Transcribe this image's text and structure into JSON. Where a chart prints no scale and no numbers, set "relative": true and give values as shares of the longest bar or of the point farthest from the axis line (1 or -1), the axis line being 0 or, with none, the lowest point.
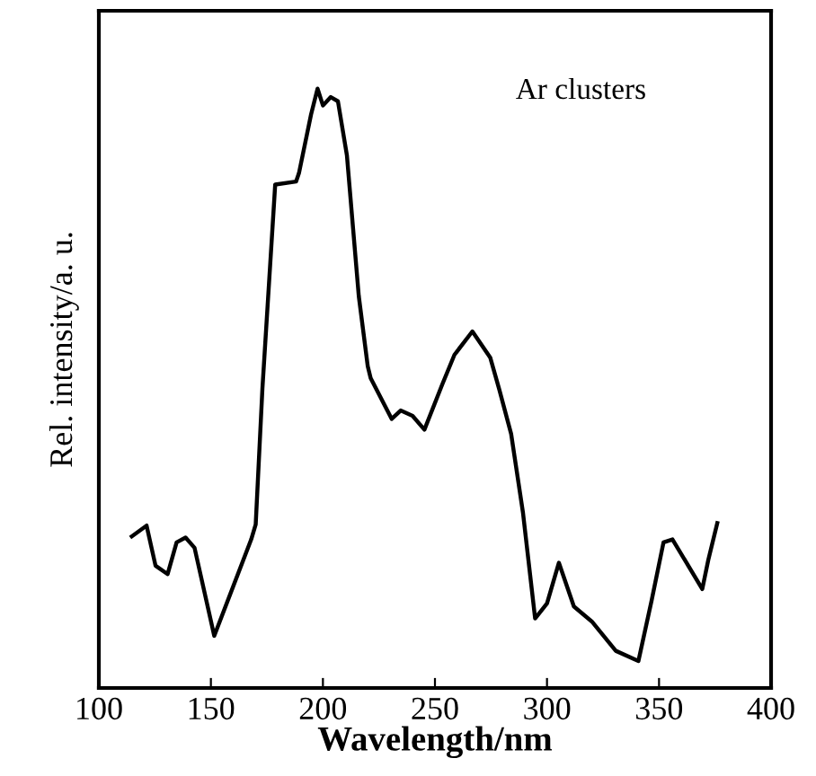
{
  "chart_data": {
    "type": "line",
    "relative": true,
    "xlabel": "Wavelength/nm",
    "ylabel": "Rel. intensity/a. u.",
    "annotations": [
      "Ar clusters"
    ],
    "xlim": [
      100,
      400
    ],
    "xticks": [
      100,
      150,
      200,
      250,
      300,
      350,
      400
    ],
    "grid": false,
    "legend": false,
    "marker": "none",
    "line_style": "solid",
    "x": [
      114.7,
      121.3,
      125.3,
      130.7,
      134.7,
      138.7,
      142.7,
      151.5,
      168,
      170,
      173,
      178.7,
      188,
      189.3,
      194.7,
      197.6,
      200,
      203.5,
      206.7,
      210.7,
      216,
      220,
      221.3,
      230.7,
      234.7,
      240,
      245.3,
      253.3,
      258.7,
      266.7,
      274.7,
      278.7,
      284,
      289.3,
      294.7,
      300,
      305.3,
      312,
      320,
      330.7,
      340.8,
      346.7,
      352,
      356,
      369.3,
      372,
      376
    ],
    "series": [
      {
        "color": "#000000",
        "values": [
          0.253,
          0.271,
          0.204,
          0.19,
          0.243,
          0.251,
          0.234,
          0.087,
          0.248,
          0.273,
          0.5,
          0.84,
          0.845,
          0.859,
          0.957,
          1.0,
          0.972,
          0.986,
          0.979,
          0.889,
          0.654,
          0.537,
          0.517,
          0.449,
          0.463,
          0.454,
          0.431,
          0.507,
          0.556,
          0.595,
          0.551,
          0.498,
          0.424,
          0.292,
          0.116,
          0.141,
          0.209,
          0.136,
          0.111,
          0.062,
          0.045,
          0.146,
          0.243,
          0.248,
          0.165,
          0.214,
          0.275
        ]
      }
    ]
  }
}
